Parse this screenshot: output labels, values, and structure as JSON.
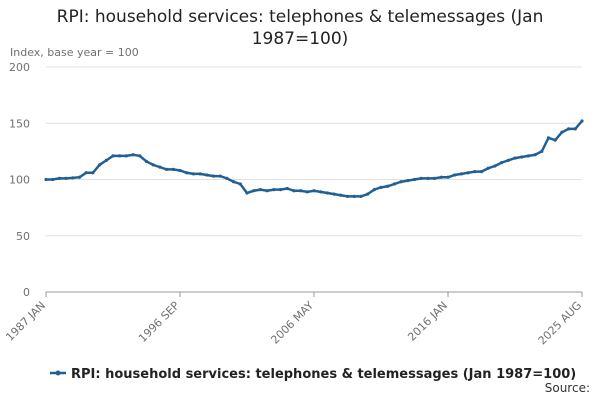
{
  "chart_data": {
    "type": "line",
    "title": "RPI: household services: telephones & telemessages (Jan 1987=100)",
    "y_label": "Index, base year = 100",
    "source": "Source:",
    "categories": [
      "1987 JAN",
      null,
      null,
      null,
      null,
      null,
      null,
      null,
      null,
      null,
      null,
      null,
      null,
      null,
      null,
      null,
      null,
      null,
      null,
      null,
      "1996 SEP",
      null,
      null,
      null,
      null,
      null,
      null,
      null,
      null,
      null,
      null,
      null,
      null,
      null,
      null,
      null,
      null,
      null,
      null,
      null,
      "2006 MAY",
      null,
      null,
      null,
      null,
      null,
      null,
      null,
      null,
      null,
      null,
      null,
      null,
      null,
      null,
      null,
      null,
      null,
      null,
      null,
      "2016 JAN",
      null,
      null,
      null,
      null,
      null,
      null,
      null,
      null,
      null,
      null,
      null,
      null,
      null,
      null,
      null,
      null,
      null,
      null,
      null,
      "2025 AUG"
    ],
    "series": [
      {
        "name": "RPI: household services: telephones & telemessages (Jan 1987=100)",
        "color": "#206095",
        "values": [
          100,
          100,
          101,
          101,
          101.5,
          102,
          106,
          106,
          113,
          117,
          121,
          121,
          121,
          122,
          121,
          116,
          113,
          111,
          109,
          109,
          108,
          106,
          105,
          105,
          104,
          103,
          103,
          101,
          98,
          96,
          88,
          90,
          91,
          90,
          91,
          91,
          92,
          90,
          90,
          89,
          90,
          89,
          88,
          87,
          86,
          85,
          85,
          85,
          87,
          91,
          93,
          94,
          96,
          98,
          99,
          100,
          101,
          101,
          101,
          102,
          102,
          104,
          105,
          106,
          107,
          107,
          110,
          112,
          115,
          117,
          119,
          120,
          121,
          122,
          125,
          137,
          135,
          142,
          145,
          145,
          152
        ]
      }
    ],
    "ylim": [
      0,
      200
    ],
    "yticks": [
      0,
      50,
      100,
      150,
      200
    ],
    "grid": true
  }
}
